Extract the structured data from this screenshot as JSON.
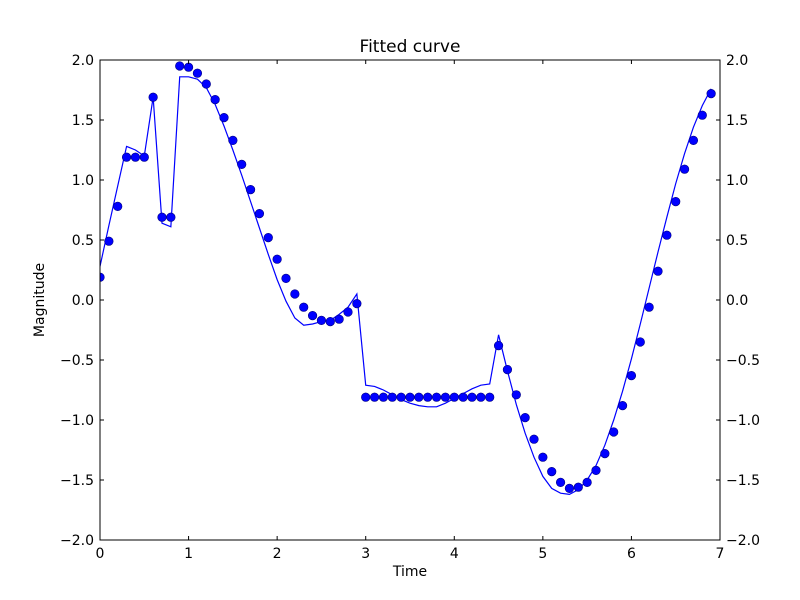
{
  "chart_data": {
    "type": "scatter",
    "title": "Fitted curve",
    "xlabel": "Time",
    "ylabel": "Magnitude",
    "xlim": [
      0,
      7
    ],
    "ylim": [
      -2.0,
      2.0
    ],
    "x_ticks": [
      "0",
      "1",
      "2",
      "3",
      "4",
      "5",
      "6",
      "7"
    ],
    "y_ticks": [
      "−2.0",
      "−1.5",
      "−1.0",
      "−0.5",
      "0.0",
      "0.5",
      "1.0",
      "1.5",
      "2.0"
    ],
    "y_ticks_right": [
      "−2.0",
      "−1.5",
      "−1.0",
      "−0.5",
      "0.0",
      "0.5",
      "1.0",
      "1.5",
      "2.0"
    ],
    "grid": false,
    "colors": {
      "series": "#0000ff",
      "axis": "#000000",
      "background": "#ffffff"
    },
    "series": [
      {
        "style": "markers",
        "x": [
          0.0,
          0.1,
          0.2,
          0.3,
          0.4,
          0.5,
          0.6,
          0.7,
          0.8,
          0.9,
          1.0,
          1.1,
          1.2,
          1.3,
          1.4,
          1.5,
          1.6,
          1.7,
          1.8,
          1.9,
          2.0,
          2.1,
          2.2,
          2.3,
          2.4,
          2.5,
          2.6,
          2.7,
          2.8,
          2.9,
          3.0,
          3.1,
          3.2,
          3.3,
          3.4,
          3.5,
          3.6,
          3.7,
          3.8,
          3.9,
          4.0,
          4.1,
          4.2,
          4.3,
          4.4,
          4.5,
          4.6,
          4.7,
          4.8,
          4.9,
          5.0,
          5.1,
          5.2,
          5.3,
          5.4,
          5.5,
          5.6,
          5.7,
          5.8,
          5.9,
          6.0,
          6.1,
          6.2,
          6.3,
          6.4,
          6.5,
          6.6,
          6.7,
          6.8,
          6.9
        ],
        "y": [
          0.19,
          0.49,
          0.78,
          1.19,
          1.19,
          1.19,
          1.69,
          0.69,
          0.69,
          1.95,
          1.94,
          1.89,
          1.8,
          1.67,
          1.52,
          1.33,
          1.13,
          0.92,
          0.72,
          0.52,
          0.34,
          0.18,
          0.05,
          -0.06,
          -0.13,
          -0.17,
          -0.18,
          -0.16,
          -0.1,
          -0.03,
          -0.81,
          -0.81,
          -0.81,
          -0.81,
          -0.81,
          -0.81,
          -0.81,
          -0.81,
          -0.81,
          -0.81,
          -0.81,
          -0.81,
          -0.81,
          -0.81,
          -0.81,
          -0.38,
          -0.58,
          -0.79,
          -0.98,
          -1.16,
          -1.31,
          -1.43,
          -1.52,
          -1.57,
          -1.56,
          -1.52,
          -1.42,
          -1.28,
          -1.1,
          -0.88,
          -0.63,
          -0.35,
          -0.06,
          0.24,
          0.54,
          0.82,
          1.09,
          1.33,
          1.54,
          1.72
        ]
      },
      {
        "style": "line",
        "x": [
          0.0,
          0.1,
          0.2,
          0.3,
          0.4,
          0.5,
          0.6,
          0.7,
          0.8,
          0.9,
          1.0,
          1.1,
          1.2,
          1.3,
          1.4,
          1.5,
          1.6,
          1.7,
          1.8,
          1.9,
          2.0,
          2.1,
          2.2,
          2.3,
          2.4,
          2.5,
          2.6,
          2.7,
          2.8,
          2.9,
          3.0,
          3.1,
          3.2,
          3.3,
          3.4,
          3.5,
          3.6,
          3.7,
          3.8,
          3.9,
          4.0,
          4.1,
          4.2,
          4.3,
          4.4,
          4.5,
          4.6,
          4.7,
          4.8,
          4.9,
          5.0,
          5.1,
          5.2,
          5.3,
          5.4,
          5.5,
          5.6,
          5.7,
          5.8,
          5.9,
          6.0,
          6.1,
          6.2,
          6.3,
          6.4,
          6.5,
          6.6,
          6.7,
          6.8,
          6.9
        ],
        "y": [
          0.28,
          0.62,
          0.95,
          1.28,
          1.25,
          1.2,
          1.69,
          0.64,
          0.61,
          1.86,
          1.86,
          1.84,
          1.77,
          1.63,
          1.45,
          1.25,
          1.04,
          0.82,
          0.6,
          0.38,
          0.17,
          -0.01,
          -0.15,
          -0.21,
          -0.2,
          -0.18,
          -0.17,
          -0.12,
          -0.06,
          0.05,
          -0.71,
          -0.72,
          -0.75,
          -0.79,
          -0.83,
          -0.86,
          -0.88,
          -0.89,
          -0.89,
          -0.86,
          -0.82,
          -0.78,
          -0.74,
          -0.71,
          -0.7,
          -0.29,
          -0.59,
          -0.87,
          -1.11,
          -1.31,
          -1.47,
          -1.57,
          -1.61,
          -1.62,
          -1.58,
          -1.5,
          -1.38,
          -1.21,
          -1.0,
          -0.76,
          -0.49,
          -0.2,
          0.1,
          0.4,
          0.69,
          0.97,
          1.22,
          1.44,
          1.62,
          1.76
        ]
      }
    ]
  }
}
